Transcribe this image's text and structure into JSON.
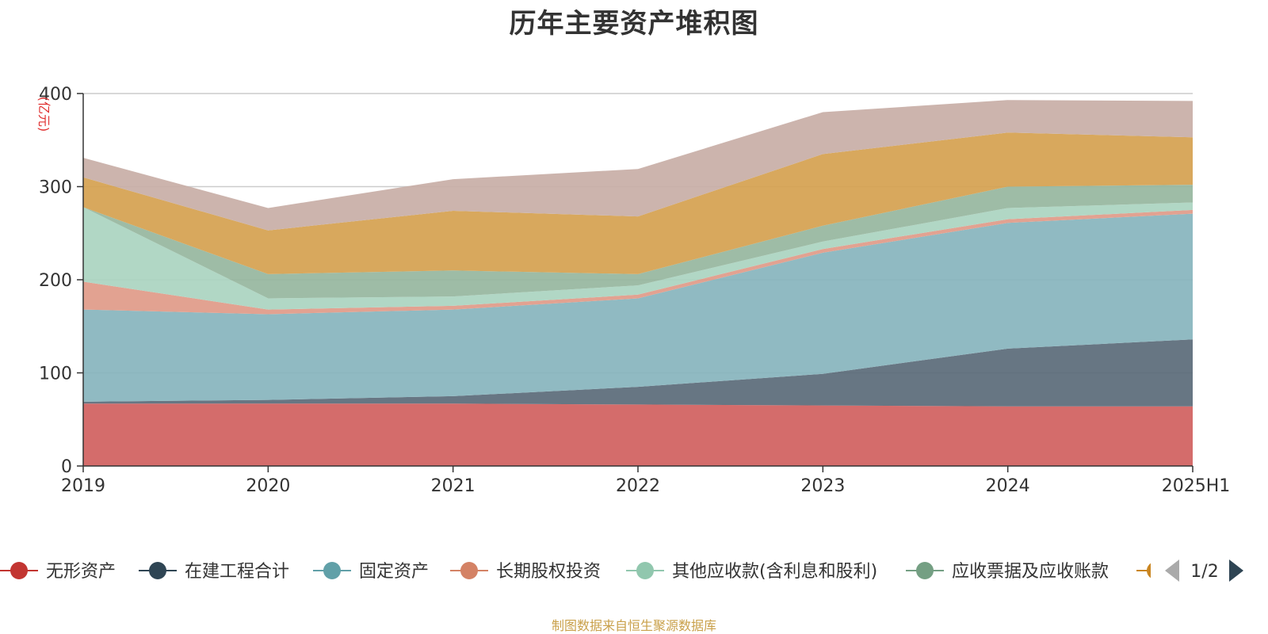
{
  "chart_data": {
    "type": "area",
    "stacked": true,
    "title": "历年主要资产堆积图",
    "unit_label": "(亿元)",
    "categories": [
      "2019",
      "2020",
      "2021",
      "2022",
      "2023",
      "2024",
      "2025H1"
    ],
    "ylim": [
      0,
      400
    ],
    "yticks": [
      0,
      100,
      200,
      300,
      400
    ],
    "grid": true,
    "legend_position": "bottom",
    "legend_page": "1/2",
    "series": [
      {
        "name": "无形资产",
        "color": "#d0605e",
        "values": [
          67,
          67,
          67,
          66,
          65,
          64,
          64
        ]
      },
      {
        "name": "在建工程合计",
        "color": "#5a6a78",
        "values": [
          2,
          4,
          8,
          19,
          34,
          62,
          72
        ]
      },
      {
        "name": "固定资产",
        "color": "#87b4bd",
        "values": [
          99,
          92,
          93,
          95,
          130,
          135,
          135
        ]
      },
      {
        "name": "长期股权投资",
        "color": "#e09a88",
        "values": [
          30,
          5,
          4,
          4,
          4,
          4,
          4
        ]
      },
      {
        "name": "其他应收款(含利息和股利)",
        "color": "#aad4c0",
        "values": [
          80,
          12,
          10,
          10,
          8,
          12,
          8
        ]
      },
      {
        "name": "应收票据及应收账款",
        "color": "#96b69e",
        "values": [
          0,
          26,
          28,
          12,
          17,
          23,
          19
        ]
      },
      {
        "name": "",
        "color": "#d5a14f",
        "values": [
          32,
          47,
          64,
          62,
          77,
          58,
          51
        ]
      },
      {
        "name": "",
        "color": "#c8aea6",
        "values": [
          21,
          24,
          34,
          51,
          45,
          35,
          39
        ]
      }
    ],
    "legend_colors": [
      "#c23531",
      "#2f4554",
      "#61a0a8",
      "#d48265",
      "#91c7ae",
      "#749f83",
      "#ca8622"
    ]
  },
  "footer": {
    "source": "制图数据来自恒生聚源数据库"
  }
}
